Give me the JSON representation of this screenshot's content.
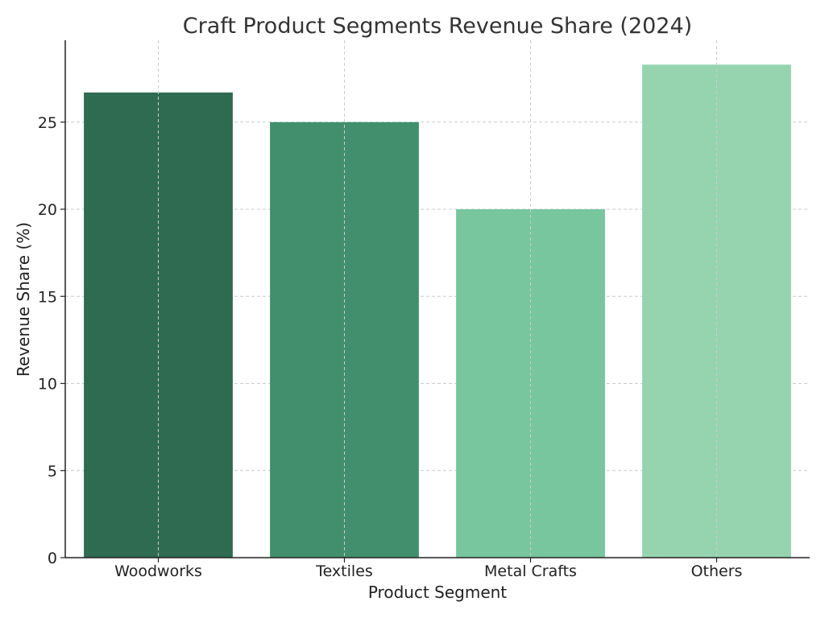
{
  "chart_data": {
    "type": "bar",
    "title": "Craft Product Segments Revenue Share (2024)",
    "xlabel": "Product Segment",
    "ylabel": "Revenue Share (%)",
    "categories": [
      "Woodworks",
      "Textiles",
      "Metal Crafts",
      "Others"
    ],
    "values": [
      26.7,
      25.0,
      20.0,
      28.3
    ],
    "colors": [
      "#2e6b51",
      "#418f6d",
      "#77c69d",
      "#95d4af"
    ],
    "ylim": [
      0,
      29.7
    ],
    "yticks": [
      0,
      5,
      10,
      15,
      20,
      25
    ],
    "grid": true
  }
}
